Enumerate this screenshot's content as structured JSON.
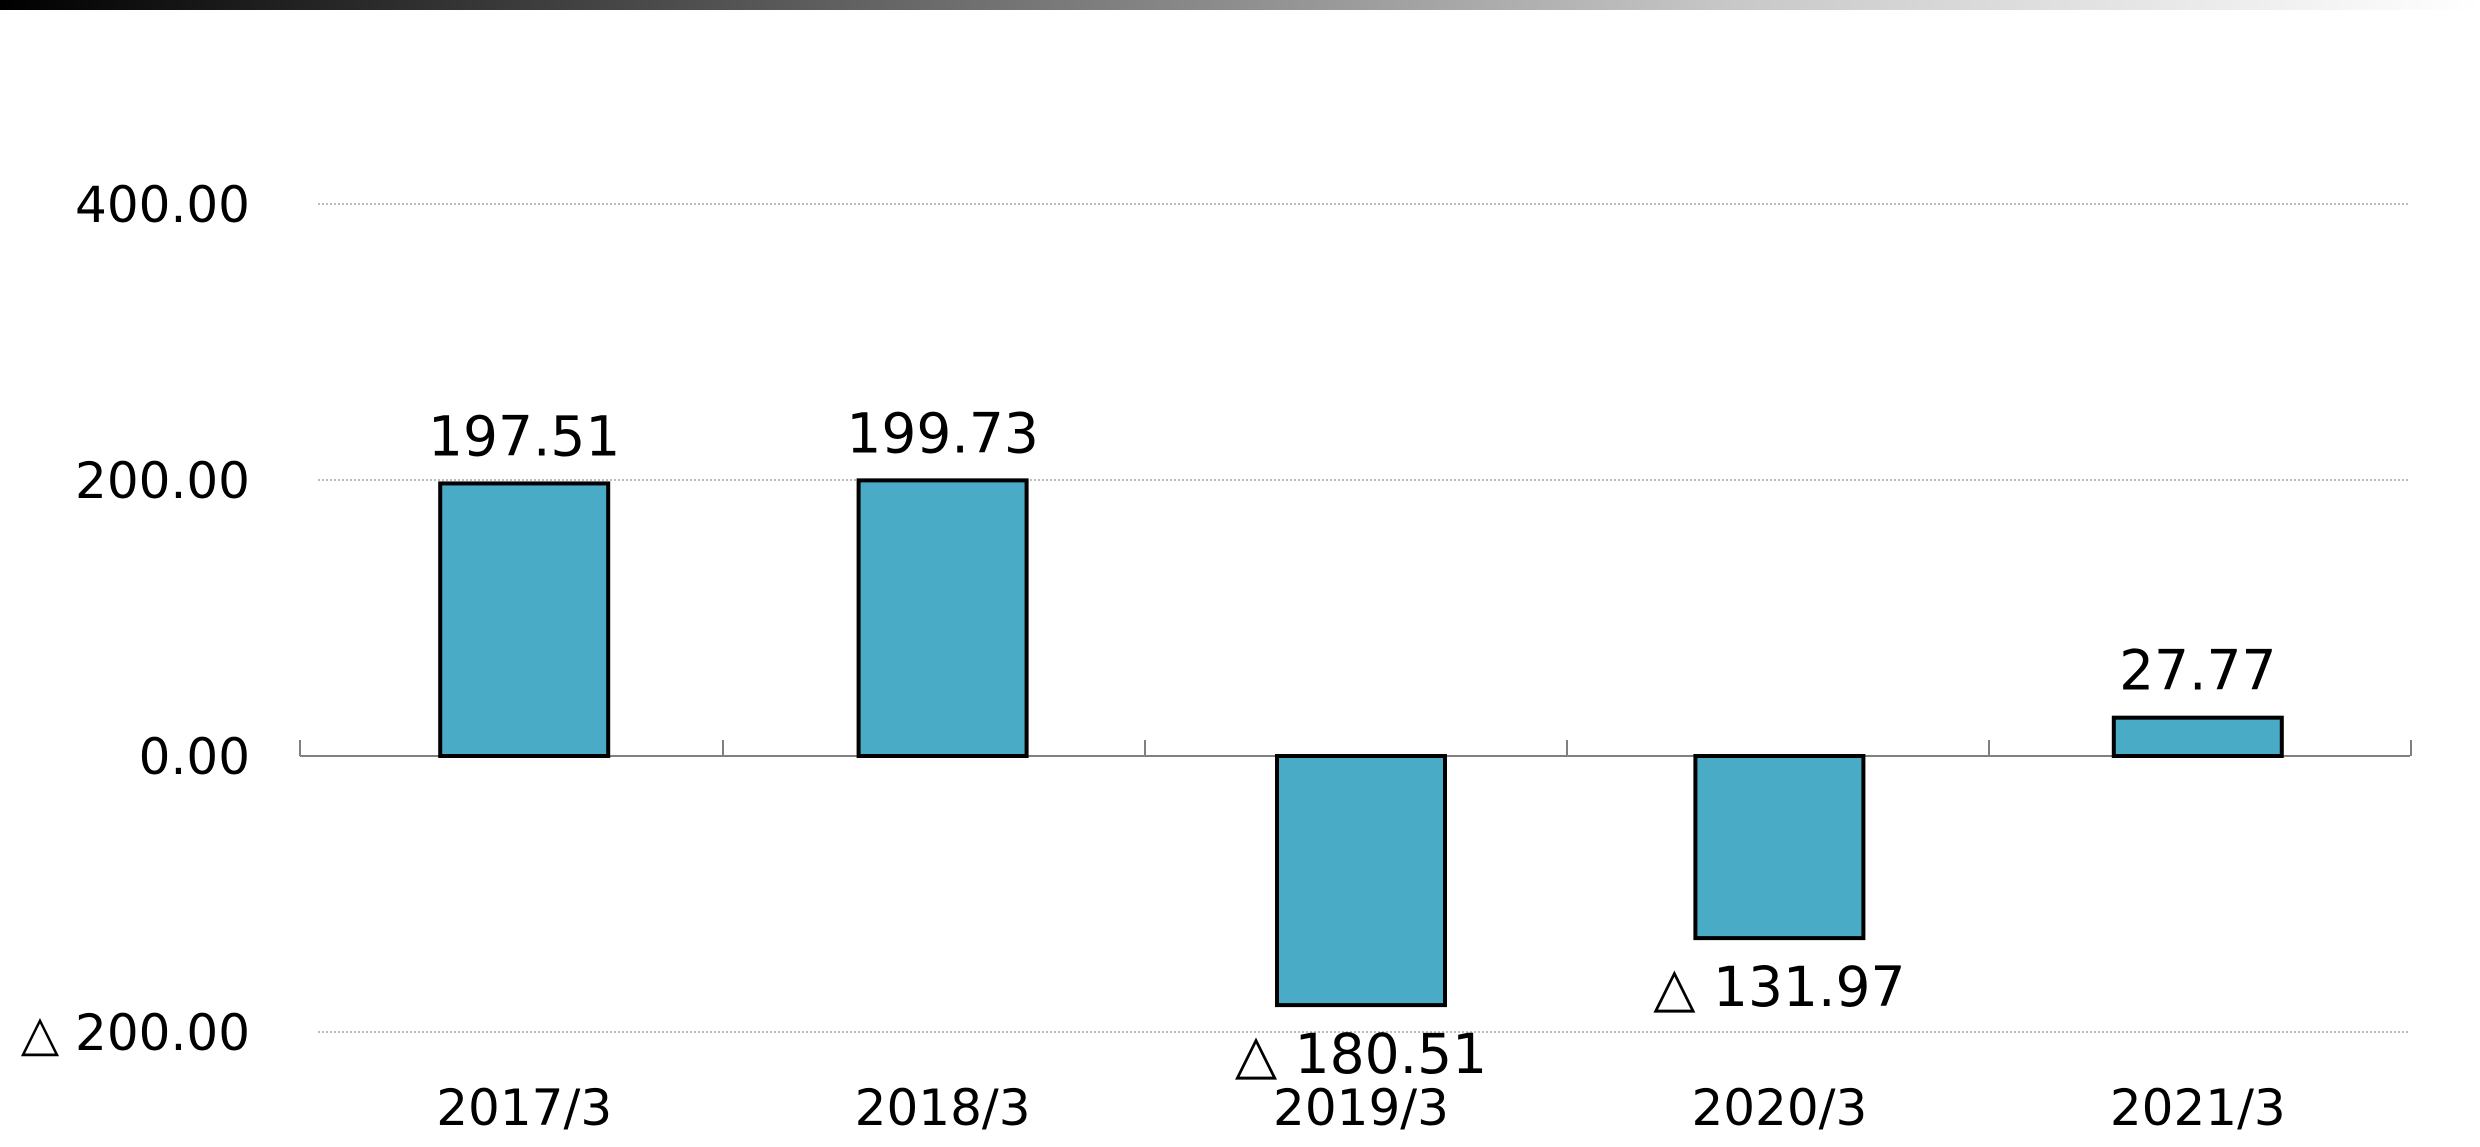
{
  "chart_data": {
    "type": "bar",
    "categories": [
      "2017/3",
      "2018/3",
      "2019/3",
      "2020/3",
      "2021/3"
    ],
    "values": [
      197.51,
      199.73,
      -180.51,
      -131.97,
      27.77
    ],
    "data_labels": [
      "197.51",
      "199.73",
      "△ 180.51",
      "△ 131.97",
      "27.77"
    ],
    "ylim": [
      -200,
      400
    ],
    "yticks": [
      400,
      200,
      0,
      -200
    ],
    "ytick_labels": [
      "400.00",
      "200.00",
      "0.00",
      "△ 200.00"
    ],
    "bar_color": "#4aabc6",
    "bar_edge_color": "#000000",
    "grid": true,
    "legend": "none"
  }
}
